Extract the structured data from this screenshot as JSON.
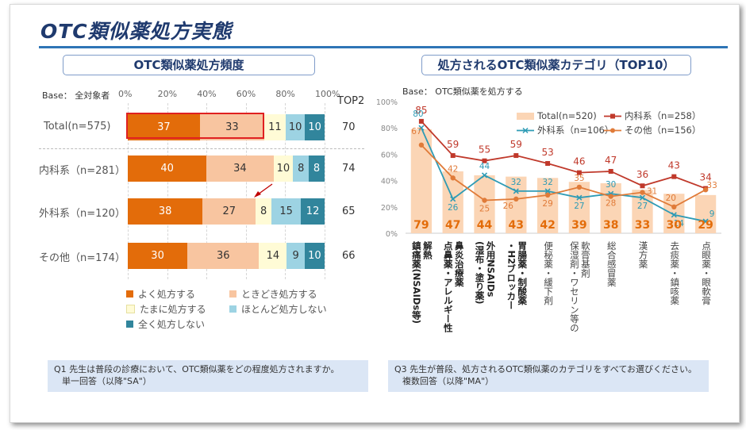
{
  "title": "OTC類似薬処方実態",
  "left": {
    "header": "OTC類似薬処方頻度",
    "base": "Base： 全対象者",
    "axis_ticks": [
      "0%",
      "20%",
      "40%",
      "60%",
      "80%",
      "100%"
    ],
    "top2_header": "TOP2",
    "rows": [
      {
        "label": "Total(n=575)",
        "top2": "70",
        "values": [
          37,
          33,
          11,
          10,
          10
        ],
        "highlight": true
      },
      {
        "label": "内科系（n=281）",
        "top2": "74",
        "values": [
          40,
          34,
          10,
          8,
          8
        ],
        "highlight": false
      },
      {
        "label": "外科系（n=120）",
        "top2": "65",
        "values": [
          38,
          27,
          8,
          15,
          12
        ],
        "highlight": false
      },
      {
        "label": "その他（n=174）",
        "top2": "66",
        "values": [
          30,
          36,
          14,
          9,
          10
        ],
        "highlight": false
      }
    ],
    "legend": [
      {
        "label": "よく処方する",
        "color": "#e36c0a"
      },
      {
        "label": "ときどき処方する",
        "color": "#f8c5a0"
      },
      {
        "label": "たまに処方する",
        "color": "#fffbd6"
      },
      {
        "label": "ほとんど処方しない",
        "color": "#9dd3e3"
      },
      {
        "label": "全く処方しない",
        "color": "#31859c"
      }
    ],
    "note": {
      "line1": "Q1 先生は普段の診療において、OTC類似薬をどの程度処方されますか。",
      "line2": "単一回答（以降\"SA\"）"
    }
  },
  "right": {
    "header": "処方されるOTC類似薬カテゴリ（TOP10）",
    "base": "Base： OTC類似薬を処方する",
    "y_ticks": [
      "100%",
      "80%",
      "60%",
      "40%",
      "20%",
      "0%"
    ],
    "categories": [
      {
        "lines": [
          "解熱",
          "鎮痛薬(NSAIDs等)"
        ],
        "bold": true
      },
      {
        "lines": [
          "鼻炎治療薬",
          "点鼻薬・アレルギー性"
        ],
        "bold": true
      },
      {
        "lines": [
          "外用NSAIDs",
          "(湿布・塗り薬)"
        ],
        "bold": true
      },
      {
        "lines": [
          "胃腸薬・制酸薬",
          "・H2ブロッカー"
        ],
        "bold": true
      },
      {
        "lines": [
          "便秘薬・緩下剤"
        ],
        "bold": false
      },
      {
        "lines": [
          "軟膏基剤",
          "保湿剤・ワセリン等の"
        ],
        "bold": false
      },
      {
        "lines": [
          "総合感冒薬"
        ],
        "bold": false
      },
      {
        "lines": [
          "漢方薬"
        ],
        "bold": false
      },
      {
        "lines": [
          "去痰薬・鎮咳薬"
        ],
        "bold": false
      },
      {
        "lines": [
          "点眼薬・眼軟膏"
        ],
        "bold": false
      }
    ],
    "legend": {
      "total": "Total(n=520)",
      "naika": "内科系（n=258）",
      "geka": "外科系（n=106）",
      "other": "その他（n=156）"
    },
    "note": {
      "line1": "Q3 先生が普段、処方されるOTC類似薬のカテゴリをすべてお選びください。",
      "line2": "複数回答（以降\"MA\"）"
    }
  },
  "chart_data": [
    {
      "type": "bar",
      "orientation": "horizontal-stacked-100",
      "title": "OTC類似薬処方頻度",
      "categories": [
        "Total(n=575)",
        "内科系（n=281）",
        "外科系（n=120）",
        "その他（n=174）"
      ],
      "series": [
        {
          "name": "よく処方する",
          "values": [
            37,
            40,
            38,
            30
          ]
        },
        {
          "name": "ときどき処方する",
          "values": [
            33,
            34,
            27,
            36
          ]
        },
        {
          "name": "たまに処方する",
          "values": [
            11,
            10,
            8,
            14
          ]
        },
        {
          "name": "ほとんど処方しない",
          "values": [
            10,
            8,
            15,
            9
          ]
        },
        {
          "name": "全く処方しない",
          "values": [
            10,
            8,
            12,
            10
          ]
        }
      ],
      "top2": [
        70,
        74,
        65,
        66
      ],
      "xlim": [
        0,
        100
      ],
      "legend": "bottom"
    },
    {
      "type": "bar",
      "combo": "bar+line",
      "title": "処方されるOTC類似薬カテゴリ（TOP10）",
      "categories": [
        "解熱鎮痛薬(NSAIDs等)",
        "点鼻薬・アレルギー性鼻炎治療薬",
        "外用NSAIDs(湿布・塗り薬)",
        "胃腸薬・制酸薬・H2ブロッカー",
        "便秘薬・緩下剤",
        "保湿剤・ワセリン等の軟膏基剤",
        "総合感冒薬",
        "漢方薬",
        "去痰薬・鎮咳薬",
        "点眼薬・眼軟膏"
      ],
      "series": [
        {
          "name": "Total(n=520)",
          "type": "bar",
          "color": "#fbd5b5",
          "values": [
            79,
            47,
            44,
            43,
            42,
            39,
            38,
            33,
            30,
            29
          ]
        },
        {
          "name": "内科系（n=258）",
          "type": "line",
          "color": "#c0392b",
          "values": [
            85,
            59,
            55,
            59,
            53,
            46,
            47,
            36,
            43,
            34
          ]
        },
        {
          "name": "外科系（n=106）",
          "type": "line",
          "color": "#2e9bb5",
          "values": [
            80,
            26,
            44,
            32,
            32,
            27,
            30,
            27,
            14,
            9
          ]
        },
        {
          "name": "その他（n=156）",
          "type": "line",
          "color": "#e07b39",
          "values": [
            67,
            42,
            25,
            26,
            29,
            35,
            28,
            31,
            20,
            33
          ]
        }
      ],
      "ylim": [
        0,
        100
      ],
      "legend": "top-right"
    }
  ]
}
